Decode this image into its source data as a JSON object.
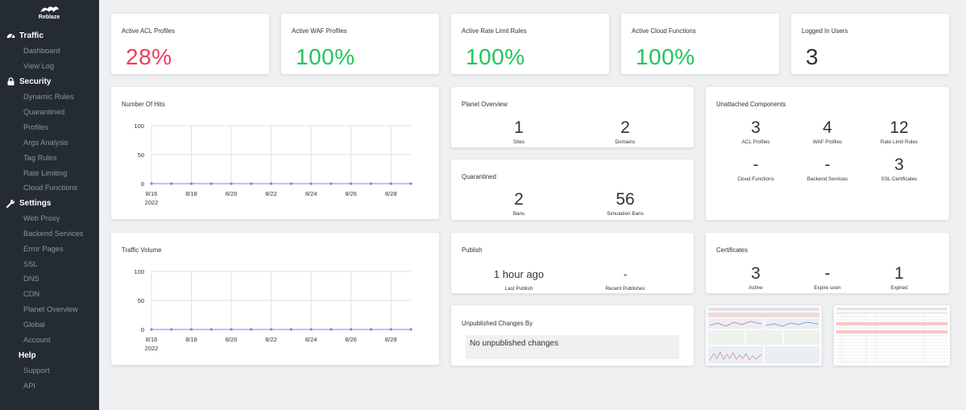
{
  "app": {
    "brand": "Reblaze"
  },
  "sidebar": {
    "sections": [
      {
        "label": "Traffic",
        "icon": "gauge-icon",
        "items": [
          {
            "label": "Dashboard"
          },
          {
            "label": "View Log"
          }
        ]
      },
      {
        "label": "Security",
        "icon": "lock-icon",
        "items": [
          {
            "label": "Dynamic Rules"
          },
          {
            "label": "Quarantined"
          },
          {
            "label": "Profiles"
          },
          {
            "label": "Args Analysis"
          },
          {
            "label": "Tag Rules"
          },
          {
            "label": "Rate Limiting"
          },
          {
            "label": "Cloud Functions"
          }
        ]
      },
      {
        "label": "Settings",
        "icon": "wrench-icon",
        "items": [
          {
            "label": "Web Proxy"
          },
          {
            "label": "Backend Services"
          },
          {
            "label": "Error Pages"
          },
          {
            "label": "SSL"
          },
          {
            "label": "DNS"
          },
          {
            "label": "CDN"
          },
          {
            "label": "Planet Overview"
          },
          {
            "label": "Global"
          },
          {
            "label": "Account"
          }
        ]
      },
      {
        "label": "Help",
        "icon": "",
        "items": [
          {
            "label": "Support"
          },
          {
            "label": "API"
          }
        ]
      }
    ]
  },
  "kpis": [
    {
      "title": "Active ACL Profiles",
      "value": "28%",
      "color": "#ee3c5a"
    },
    {
      "title": "Active WAF Profiles",
      "value": "100%",
      "color": "#22c55e"
    },
    {
      "title": "Active Rate Limit Rules",
      "value": "100%",
      "color": "#22c55e"
    },
    {
      "title": "Active Cloud Functions",
      "value": "100%",
      "color": "#22c55e"
    },
    {
      "title": "Logged In Users",
      "value": "3",
      "color": "#333333"
    }
  ],
  "planet": {
    "title": "Planet Overview",
    "stats": [
      {
        "value": "1",
        "label": "Sites"
      },
      {
        "value": "2",
        "label": "Domains"
      }
    ]
  },
  "quarantined": {
    "title": "Quarantined",
    "stats": [
      {
        "value": "2",
        "label": "Bans"
      },
      {
        "value": "56",
        "label": "Simulation Bans"
      }
    ]
  },
  "publish": {
    "title": "Publish",
    "stats": [
      {
        "value": "1 hour ago",
        "label": "Last Publish"
      },
      {
        "value": "-",
        "label": "Recent Publishes"
      }
    ]
  },
  "unpublished": {
    "title": "Unpublished Changes By",
    "message": "No unpublished changes"
  },
  "unattached": {
    "title": "Unattached Components",
    "stats": [
      {
        "value": "3",
        "label": "ACL Profiles"
      },
      {
        "value": "4",
        "label": "WAF Profiles"
      },
      {
        "value": "12",
        "label": "Rate Limit Rules"
      },
      {
        "value": "-",
        "label": "Cloud Functions"
      },
      {
        "value": "-",
        "label": "Backend Services"
      },
      {
        "value": "3",
        "label": "SSL Certificates"
      }
    ]
  },
  "certificates": {
    "title": "Certificates",
    "stats": [
      {
        "value": "3",
        "label": "Active"
      },
      {
        "value": "-",
        "label": "Expire soon"
      },
      {
        "value": "1",
        "label": "Expired"
      }
    ]
  },
  "chart_data": [
    {
      "type": "line",
      "title": "Number Of Hits",
      "x": [
        "8/16",
        "8/17",
        "8/18",
        "8/19",
        "8/20",
        "8/21",
        "8/22",
        "8/23",
        "8/24",
        "8/25",
        "8/26",
        "8/27",
        "8/28",
        "8/29"
      ],
      "x_tick_labels": [
        "8/16",
        "8/18",
        "8/20",
        "8/22",
        "8/24",
        "8/26",
        "8/28"
      ],
      "x_year_label": "2022",
      "series": [
        {
          "values": [
            0,
            0,
            0,
            0,
            0,
            0,
            0,
            0,
            0,
            0,
            0,
            0,
            0,
            0
          ],
          "color": "#8a7cf0"
        }
      ],
      "ylim": [
        0,
        100
      ],
      "y_ticks": [
        0,
        50,
        100
      ],
      "grid": true
    },
    {
      "type": "line",
      "title": "Traffic Volume",
      "x": [
        "8/16",
        "8/17",
        "8/18",
        "8/19",
        "8/20",
        "8/21",
        "8/22",
        "8/23",
        "8/24",
        "8/25",
        "8/26",
        "8/27",
        "8/28",
        "8/29"
      ],
      "x_tick_labels": [
        "8/16",
        "8/18",
        "8/20",
        "8/22",
        "8/24",
        "8/26",
        "8/28"
      ],
      "x_year_label": "2022",
      "series": [
        {
          "values": [
            0,
            0,
            0,
            0,
            0,
            0,
            0,
            0,
            0,
            0,
            0,
            0,
            0,
            0
          ],
          "color": "#8a7cf0"
        }
      ],
      "ylim": [
        0,
        100
      ],
      "y_ticks": [
        0,
        50,
        100
      ],
      "grid": true
    }
  ]
}
